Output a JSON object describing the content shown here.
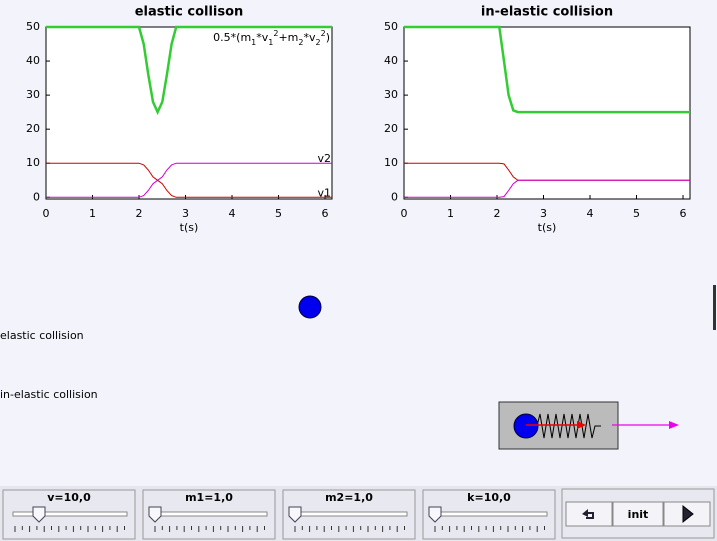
{
  "chart_data": [
    {
      "type": "line",
      "title": "elastic collison",
      "xlabel": "t(s)",
      "annotation_parts": [
        "0.5*(m",
        "1",
        "*v",
        "1",
        "2",
        "+m",
        "2",
        "*v",
        "2",
        "2",
        ")"
      ],
      "x": [
        0,
        2.0,
        2.1,
        2.2,
        2.3,
        2.4,
        2.5,
        2.6,
        2.7,
        2.8,
        6.15
      ],
      "series": [
        {
          "color": "#33cc33",
          "values": [
            50,
            50,
            45,
            36,
            28,
            25,
            28,
            36,
            45,
            50,
            50
          ]
        },
        {
          "name": "v1",
          "color": "#cc0000",
          "values": [
            10,
            10,
            9.5,
            8,
            6,
            5,
            4,
            2,
            0.5,
            0,
            0
          ]
        },
        {
          "name": "v2",
          "color": "#cc00cc",
          "values": [
            0,
            0,
            0.5,
            2,
            4,
            5,
            6,
            8,
            9.5,
            10,
            10
          ]
        }
      ],
      "xlim": [
        0,
        6.15
      ],
      "ylim": [
        -0.5,
        50
      ],
      "xticks": [
        0,
        1,
        2,
        3,
        4,
        5,
        6
      ],
      "yticks": [
        0,
        10,
        20,
        30,
        40,
        50
      ]
    },
    {
      "type": "line",
      "title": "in-elastic collision",
      "xlabel": "t(s)",
      "x": [
        0,
        2.05,
        2.15,
        2.25,
        2.35,
        2.45,
        6.15
      ],
      "series": [
        {
          "color": "#33cc33",
          "values": [
            50,
            50,
            40,
            30,
            25.5,
            25,
            25
          ]
        },
        {
          "color": "#cc0000",
          "values": [
            10,
            10,
            9.8,
            8,
            6,
            5,
            5
          ]
        },
        {
          "color": "#cc00cc",
          "values": [
            0,
            0,
            0.2,
            2,
            4,
            5,
            5
          ]
        }
      ],
      "xlim": [
        0,
        6.15
      ],
      "ylim": [
        -0.5,
        50
      ],
      "xticks": [
        0,
        1,
        2,
        3,
        4,
        5,
        6
      ],
      "yticks": [
        0,
        10,
        20,
        30,
        40,
        50
      ]
    }
  ],
  "scene": {
    "labels": [
      "elastic collision",
      "in-elastic collision"
    ]
  },
  "controls": {
    "sliders": [
      "v=10,0",
      "m1=1,0",
      "m2=1,0",
      "k=10,0"
    ],
    "buttons": [
      "init"
    ]
  }
}
